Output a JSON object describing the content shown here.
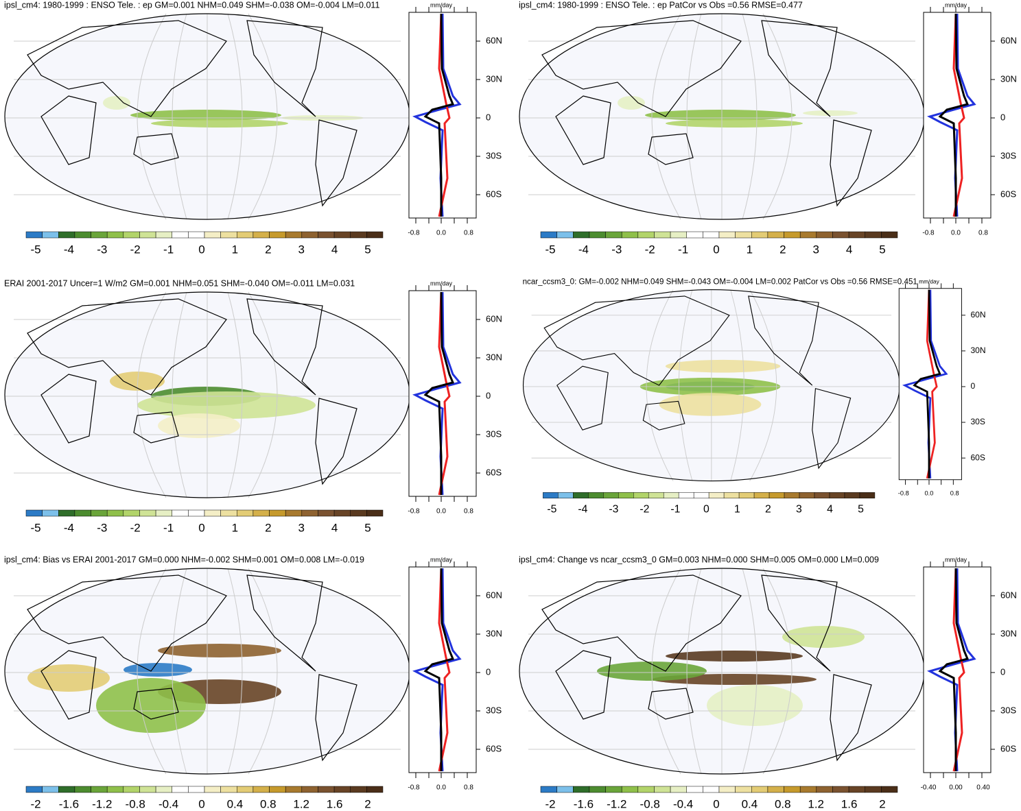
{
  "colorbar_colors": [
    "#2c7bc6",
    "#7cc0ea",
    "#2f6e2a",
    "#4c8c2f",
    "#6aa53a",
    "#8fc04a",
    "#b2d46a",
    "#cfe396",
    "#e6efc4",
    "#ffffff",
    "#ffffff",
    "#f4eec6",
    "#ede0a0",
    "#e3cc75",
    "#d4b04a",
    "#c69a2c",
    "#a87a2e",
    "#8e6230",
    "#7a5230",
    "#684426",
    "#5a3a20",
    "#4a2e18"
  ],
  "panels": [
    {
      "title": "ipsl_cm4: 1980-1999 : ENSO Tele. : ep GM=0.001 NHM=0.049 SHM=-0.038 OM=-0.004 LM=0.011",
      "unit": "mm/day",
      "lat_labels": [
        "60N",
        "30N",
        "0",
        "30S",
        "60S"
      ],
      "x_labels": [
        "-0.8",
        "0.0",
        "0.8"
      ],
      "colorbar_labels": [
        "-5",
        "-4",
        "-3",
        "-2",
        "-1",
        "0",
        "1",
        "2",
        "3",
        "4",
        "5"
      ]
    },
    {
      "title": "ipsl_cm4: 1980-1999 : ENSO Tele. : ep PatCor vs Obs =0.56 RMSE=0.477",
      "unit": "mm/day",
      "lat_labels": [
        "60N",
        "30N",
        "0",
        "30S",
        "60S"
      ],
      "x_labels": [
        "-0.8",
        "0.0",
        "0.8"
      ],
      "colorbar_labels": [
        "-5",
        "-4",
        "-3",
        "-2",
        "-1",
        "0",
        "1",
        "2",
        "3",
        "4",
        "5"
      ]
    },
    {
      "title": "ERAI 2001-2017 Uncer=1 W/m2 GM=0.001 NHM=0.051 SHM=-0.040 OM=-0.011 LM=0.031",
      "unit": "mm/day",
      "lat_labels": [
        "60N",
        "30N",
        "0",
        "30S",
        "60S"
      ],
      "x_labels": [
        "-0.8",
        "0.0",
        "0.8"
      ],
      "colorbar_labels": [
        "-5",
        "-4",
        "-3",
        "-2",
        "-1",
        "0",
        "1",
        "2",
        "3",
        "4",
        "5"
      ]
    },
    {
      "title": "ncar_ccsm3_0: GM=-0.002 NHM=0.049 SHM=-0.043 OM=-0.004 LM=0.002 PatCor vs Obs =0.56 RMSE=0.451",
      "unit": "mm/day",
      "lat_labels": [
        "60N",
        "30N",
        "0",
        "30S",
        "60S"
      ],
      "x_labels": [
        "-0.8",
        "0.0",
        "0.8"
      ],
      "colorbar_labels": [
        "-5",
        "-4",
        "-3",
        "-2",
        "-1",
        "0",
        "1",
        "2",
        "3",
        "4",
        "5"
      ]
    },
    {
      "title": "ipsl_cm4: Bias vs ERAI 2001-2017 GM=0.000 NHM=-0.002 SHM=0.001 OM=0.008 LM=-0.019",
      "unit": "mm/day",
      "lat_labels": [
        "60N",
        "30N",
        "0",
        "30S",
        "60S"
      ],
      "x_labels": [
        "-0.8",
        "0.0",
        "0.8"
      ],
      "colorbar_labels": [
        "-2",
        "-1.6",
        "-1.2",
        "-0.8",
        "-0.4",
        "0",
        "0.4",
        "0.8",
        "1.2",
        "1.6",
        "2"
      ]
    },
    {
      "title": "ipsl_cm4: Change vs ncar_ccsm3_0 GM=0.003 NHM=0.000 SHM=0.005 OM=0.000 LM=0.009",
      "unit": "mm/day",
      "lat_labels": [
        "60N",
        "30N",
        "0",
        "30S",
        "60S"
      ],
      "x_labels": [
        "-0.40",
        "0.00",
        "0.40"
      ],
      "colorbar_labels": [
        "-2",
        "-1.6",
        "-1.2",
        "-0.8",
        "-0.4",
        "0",
        "0.4",
        "0.8",
        "1.2",
        "1.6",
        "2"
      ]
    }
  ]
}
